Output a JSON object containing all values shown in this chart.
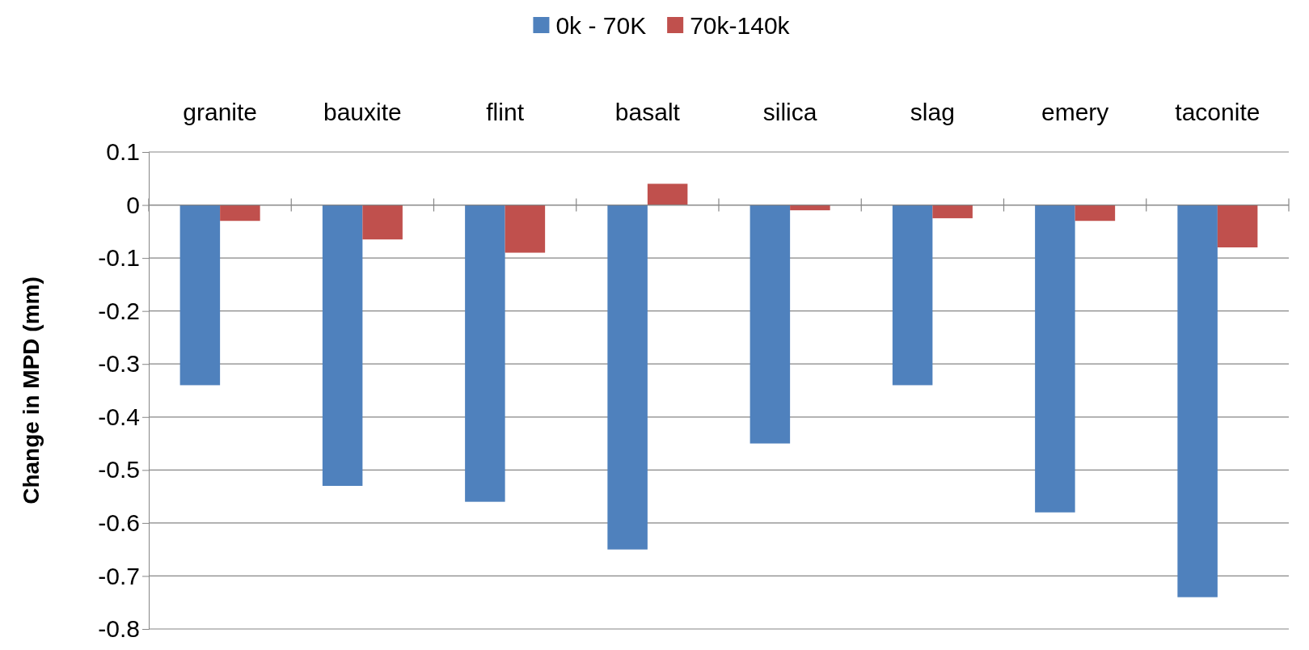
{
  "chart_data": {
    "type": "bar",
    "ylabel": "Change in MPD (mm)",
    "categories": [
      "granite",
      "bauxite",
      "flint",
      "basalt",
      "silica",
      "slag",
      "emery",
      "taconite"
    ],
    "series": [
      {
        "name": "0k - 70K",
        "color": "#4f81bd",
        "values": [
          -0.34,
          -0.53,
          -0.56,
          -0.65,
          -0.45,
          -0.34,
          -0.58,
          -0.74
        ]
      },
      {
        "name": "70k-140k",
        "color": "#c0504d",
        "values": [
          -0.03,
          -0.065,
          -0.09,
          0.04,
          -0.01,
          -0.025,
          -0.03,
          -0.08
        ]
      }
    ],
    "ylim": [
      -0.8,
      0.1
    ],
    "yticks": [
      0.1,
      0,
      -0.1,
      -0.2,
      -0.3,
      -0.4,
      -0.5,
      -0.6,
      -0.7,
      -0.8
    ],
    "grid": "y",
    "legend": "top"
  }
}
